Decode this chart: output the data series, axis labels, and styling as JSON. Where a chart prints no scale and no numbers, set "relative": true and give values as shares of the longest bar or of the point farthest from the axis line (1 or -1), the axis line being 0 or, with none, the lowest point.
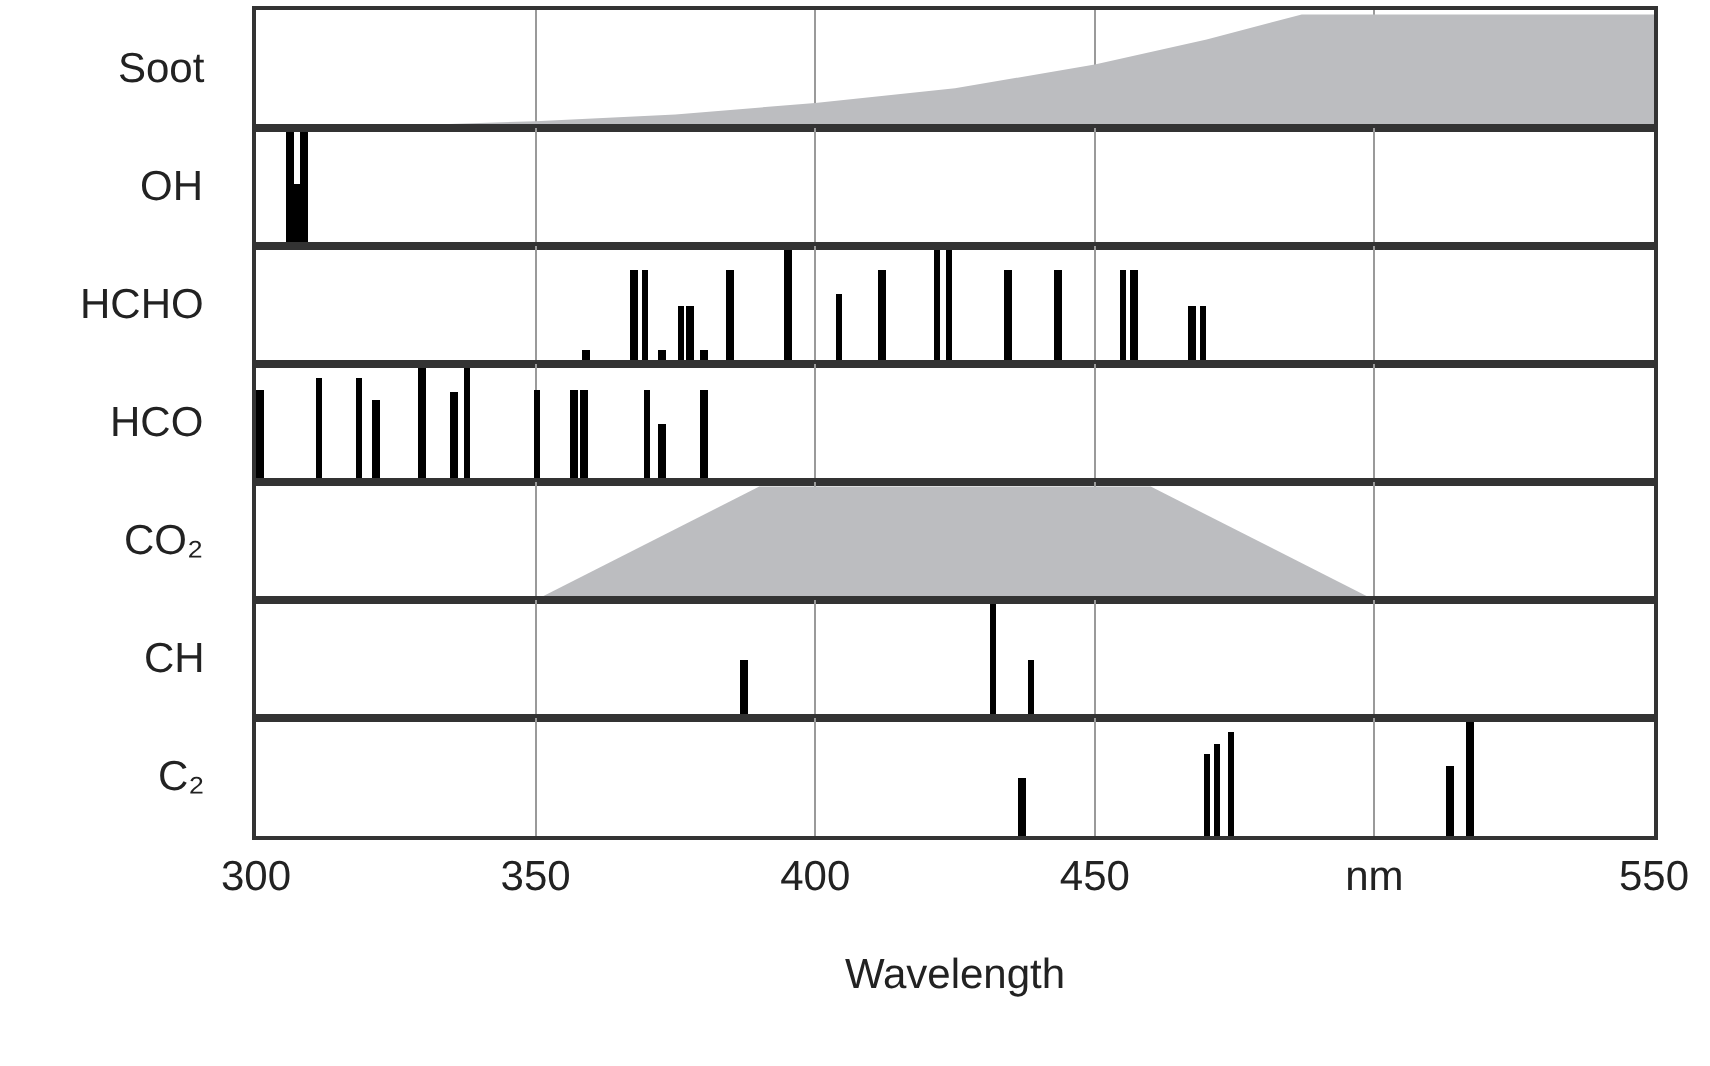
{
  "chart_data": [
    {
      "type": "area",
      "ylabel": "Soot",
      "relative": true,
      "color": "#bcbdc0",
      "x": [
        300,
        325,
        350,
        375,
        400,
        425,
        450,
        470,
        487,
        550
      ],
      "values": [
        0,
        0.02,
        0.06,
        0.12,
        0.22,
        0.35,
        0.56,
        0.78,
        1,
        1
      ],
      "xlim": [
        300,
        550
      ],
      "xticks": [
        300,
        350,
        400,
        450,
        500,
        550
      ],
      "grid": "x",
      "tick_labels": false
    },
    {
      "type": "bar",
      "ylabel": "OH",
      "relative": true,
      "color": "#000000",
      "x": [
        306,
        307.3,
        308.5
      ],
      "values": [
        1,
        0.55,
        1
      ],
      "xlim": [
        300,
        550
      ],
      "xticks": [
        300,
        350,
        400,
        450,
        500,
        550
      ],
      "grid": "x",
      "tick_labels": false
    },
    {
      "type": "bar",
      "ylabel": "HCHO",
      "relative": true,
      "color": "#000000",
      "x": [
        358.9,
        367.5,
        369.5,
        372.7,
        376,
        377.7,
        380.2,
        384.7,
        395.1,
        404.2,
        411.9,
        421.8,
        423.9,
        434.5,
        443.4,
        455.1,
        456.9,
        467.3,
        469.4
      ],
      "values": [
        0.12,
        0.83,
        0.83,
        0.12,
        0.52,
        0.52,
        0.12,
        0.83,
        1,
        0.62,
        0.83,
        1,
        1,
        0.83,
        0.82,
        0.83,
        0.83,
        0.51,
        0.51
      ],
      "xlim": [
        300,
        550
      ],
      "xticks": [
        300,
        350,
        400,
        450,
        500,
        550
      ],
      "grid": "x",
      "tick_labels": false
    },
    {
      "type": "bar",
      "ylabel": "HCO",
      "relative": true,
      "color": "#000000",
      "x": [
        300.7,
        311.2,
        318.4,
        321.5,
        329.6,
        335.5,
        337.7,
        350.3,
        356.8,
        358.7,
        369.9,
        372.7,
        380.2
      ],
      "values": [
        0.81,
        0.91,
        0.91,
        0.72,
        1,
        0.8,
        1,
        0.81,
        0.81,
        0.81,
        0.81,
        0.52,
        0.81
      ],
      "xlim": [
        300,
        550
      ],
      "xticks": [
        300,
        350,
        400,
        450,
        500,
        550
      ],
      "grid": "x",
      "tick_labels": false
    },
    {
      "type": "area",
      "ylabel": "CO₂",
      "relative": true,
      "color": "#bcbdc0",
      "x": [
        350,
        390,
        460,
        500
      ],
      "values": [
        0,
        1,
        1,
        0
      ],
      "xlim": [
        300,
        550
      ],
      "xticks": [
        300,
        350,
        400,
        450,
        500,
        550
      ],
      "grid": "x",
      "tick_labels": false
    },
    {
      "type": "bar",
      "ylabel": "CH",
      "relative": true,
      "color": "#000000",
      "x": [
        387.3,
        431.8,
        438.6
      ],
      "values": [
        0.52,
        1,
        0.52
      ],
      "xlim": [
        300,
        550
      ],
      "xticks": [
        300,
        350,
        400,
        450,
        500,
        550
      ],
      "grid": "x",
      "tick_labels": false
    },
    {
      "type": "bar",
      "ylabel": "C₂",
      "xlabel": "Wavelength",
      "relative": true,
      "color": "#000000",
      "x": [
        436.9,
        470,
        471.9,
        474.3,
        513.5,
        517.2
      ],
      "values": [
        0.51,
        0.72,
        0.81,
        0.92,
        0.62,
        1
      ],
      "xlim": [
        300,
        550
      ],
      "xticks": [
        300,
        350,
        400,
        450,
        {
          "value": 500,
          "label": "nm"
        },
        550
      ],
      "grid": "x",
      "tick_labels": "x"
    }
  ]
}
